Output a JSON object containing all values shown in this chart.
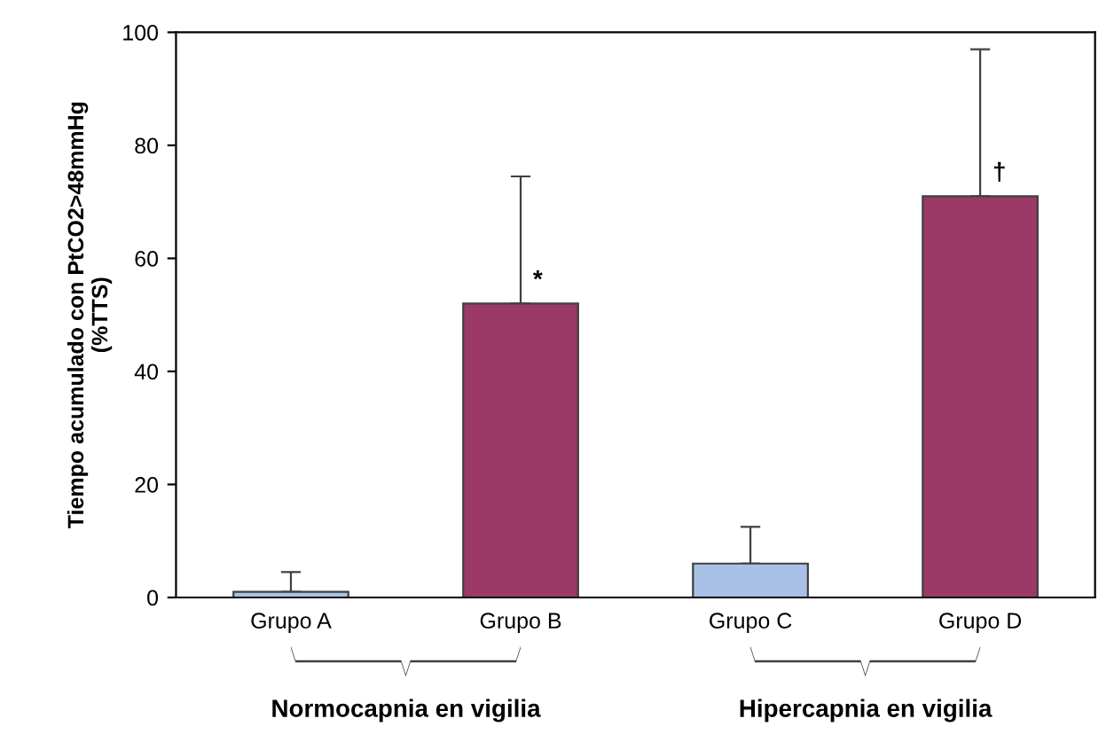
{
  "chart_data": {
    "type": "bar",
    "ylabel": "Tiempo acumulado con PtCO2>48mmHg\n(%TTS)",
    "categories": [
      "Grupo A",
      "Grupo B",
      "Grupo C",
      "Grupo D"
    ],
    "values": [
      1,
      52,
      6,
      71
    ],
    "colors": [
      "#a9c1e6",
      "#9b3a66",
      "#a9c1e6",
      "#9b3a66"
    ],
    "errors": [
      [
        1,
        4.5
      ],
      [
        52,
        74.5
      ],
      [
        6,
        12.5
      ],
      [
        71,
        97
      ]
    ],
    "ylim": [
      0,
      100
    ],
    "yticks": [
      0,
      20,
      40,
      60,
      80,
      100
    ],
    "grid": false,
    "annotations": [
      {
        "text": "*",
        "x": "Grupo B",
        "y": 56
      },
      {
        "text": "†",
        "x": "Grupo D",
        "y": 75
      },
      "Normocapnia en vigilia",
      "Hipercapnia en vigilia"
    ]
  }
}
